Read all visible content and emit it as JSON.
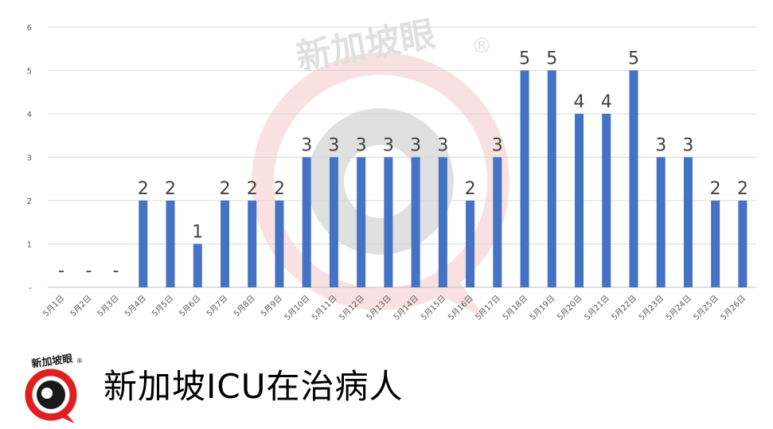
{
  "watermark": {
    "brand_text": "新加坡眼",
    "registered_mark": "®"
  },
  "logo": {
    "brand_text": "新加坡眼",
    "registered_mark": "®"
  },
  "footer": {
    "title": "新加坡ICU在治病人"
  },
  "colors": {
    "bar": "#4472c4",
    "grid": "#d9d9d9",
    "logo_red": "#e02020",
    "logo_dark": "#1a1a1a"
  },
  "chart_data": {
    "type": "bar",
    "title": "",
    "xlabel": "",
    "ylabel": "",
    "ylim": [
      0,
      6
    ],
    "y_ticks": [
      "-",
      "1",
      "2",
      "3",
      "4",
      "5",
      "6"
    ],
    "grid": true,
    "categories": [
      "5月1日",
      "5月2日",
      "5月3日",
      "5月4日",
      "5月5日",
      "5月6日",
      "5月7日",
      "5月8日",
      "5月9日",
      "5月10日",
      "5月11日",
      "5月12日",
      "5月13日",
      "5月14日",
      "5月15日",
      "5月16日",
      "5月17日",
      "5月18日",
      "5月19日",
      "5月20日",
      "5月21日",
      "5月22日",
      "5月23日",
      "5月24日",
      "5月25日",
      "5月26日"
    ],
    "values": [
      0,
      0,
      0,
      2,
      2,
      1,
      2,
      2,
      2,
      3,
      3,
      3,
      3,
      3,
      3,
      2,
      3,
      5,
      5,
      4,
      4,
      5,
      3,
      3,
      2,
      2
    ],
    "data_labels": [
      "-",
      "-",
      "-",
      "2",
      "2",
      "1",
      "2",
      "2",
      "2",
      "3",
      "3",
      "3",
      "3",
      "3",
      "3",
      "2",
      "3",
      "5",
      "5",
      "4",
      "4",
      "5",
      "3",
      "3",
      "2",
      "2"
    ]
  }
}
